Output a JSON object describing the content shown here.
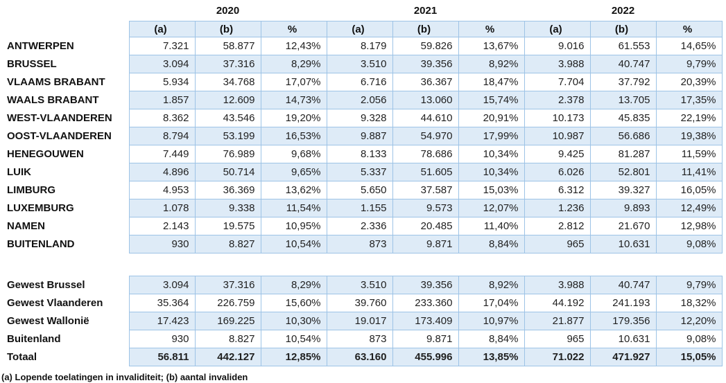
{
  "years": [
    "2020",
    "2021",
    "2022"
  ],
  "columns": [
    "(a)",
    "(b)",
    "%"
  ],
  "footnote": "(a) Lopende toelatingen in invaliditeit; (b) aantal invaliden",
  "colors": {
    "row_shade": "#deebf7",
    "border": "#9dc3e6",
    "text": "#111111",
    "background": "#ffffff"
  },
  "provinces": {
    "rows": [
      {
        "label": "ANTWERPEN",
        "values": [
          "7.321",
          "58.877",
          "12,43%",
          "8.179",
          "59.826",
          "13,67%",
          "9.016",
          "61.553",
          "14,65%"
        ]
      },
      {
        "label": "BRUSSEL",
        "values": [
          "3.094",
          "37.316",
          "8,29%",
          "3.510",
          "39.356",
          "8,92%",
          "3.988",
          "40.747",
          "9,79%"
        ]
      },
      {
        "label": "VLAAMS BRABANT",
        "values": [
          "5.934",
          "34.768",
          "17,07%",
          "6.716",
          "36.367",
          "18,47%",
          "7.704",
          "37.792",
          "20,39%"
        ]
      },
      {
        "label": "WAALS BRABANT",
        "values": [
          "1.857",
          "12.609",
          "14,73%",
          "2.056",
          "13.060",
          "15,74%",
          "2.378",
          "13.705",
          "17,35%"
        ]
      },
      {
        "label": "WEST-VLAANDEREN",
        "values": [
          "8.362",
          "43.546",
          "19,20%",
          "9.328",
          "44.610",
          "20,91%",
          "10.173",
          "45.835",
          "22,19%"
        ]
      },
      {
        "label": "OOST-VLAANDEREN",
        "values": [
          "8.794",
          "53.199",
          "16,53%",
          "9.887",
          "54.970",
          "17,99%",
          "10.987",
          "56.686",
          "19,38%"
        ]
      },
      {
        "label": "HENEGOUWEN",
        "values": [
          "7.449",
          "76.989",
          "9,68%",
          "8.133",
          "78.686",
          "10,34%",
          "9.425",
          "81.287",
          "11,59%"
        ]
      },
      {
        "label": "LUIK",
        "values": [
          "4.896",
          "50.714",
          "9,65%",
          "5.337",
          "51.605",
          "10,34%",
          "6.026",
          "52.801",
          "11,41%"
        ]
      },
      {
        "label": "LIMBURG",
        "values": [
          "4.953",
          "36.369",
          "13,62%",
          "5.650",
          "37.587",
          "15,03%",
          "6.312",
          "39.327",
          "16,05%"
        ]
      },
      {
        "label": "LUXEMBURG",
        "values": [
          "1.078",
          "9.338",
          "11,54%",
          "1.155",
          "9.573",
          "12,07%",
          "1.236",
          "9.893",
          "12,49%"
        ]
      },
      {
        "label": "NAMEN",
        "values": [
          "2.143",
          "19.575",
          "10,95%",
          "2.336",
          "20.485",
          "11,40%",
          "2.812",
          "21.670",
          "12,98%"
        ]
      },
      {
        "label": "BUITENLAND",
        "values": [
          "930",
          "8.827",
          "10,54%",
          "873",
          "9.871",
          "8,84%",
          "965",
          "10.631",
          "9,08%"
        ]
      }
    ]
  },
  "summary": {
    "rows": [
      {
        "label": "Gewest Brussel",
        "values": [
          "3.094",
          "37.316",
          "8,29%",
          "3.510",
          "39.356",
          "8,92%",
          "3.988",
          "40.747",
          "9,79%"
        ]
      },
      {
        "label": "Gewest Vlaanderen",
        "values": [
          "35.364",
          "226.759",
          "15,60%",
          "39.760",
          "233.360",
          "17,04%",
          "44.192",
          "241.193",
          "18,32%"
        ]
      },
      {
        "label": "Gewest Wallonië",
        "values": [
          "17.423",
          "169.225",
          "10,30%",
          "19.017",
          "173.409",
          "10,97%",
          "21.877",
          "179.356",
          "12,20%"
        ]
      },
      {
        "label": "Buitenland",
        "values": [
          "930",
          "8.827",
          "10,54%",
          "873",
          "9.871",
          "8,84%",
          "965",
          "10.631",
          "9,08%"
        ]
      },
      {
        "label": "Totaal",
        "bold": true,
        "values": [
          "56.811",
          "442.127",
          "12,85%",
          "63.160",
          "455.996",
          "13,85%",
          "71.022",
          "471.927",
          "15,05%"
        ]
      }
    ]
  }
}
